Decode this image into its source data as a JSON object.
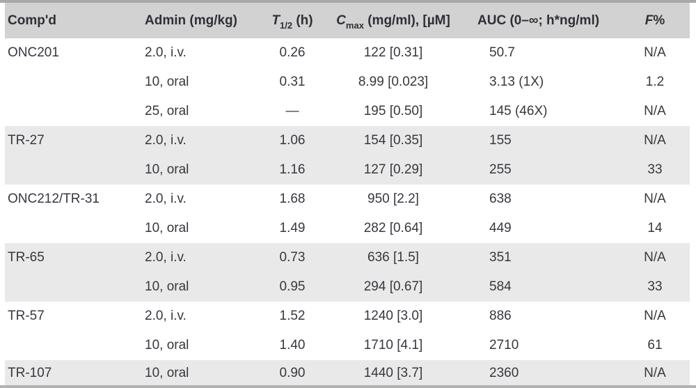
{
  "table": {
    "columns": [
      {
        "id": "compound",
        "label": "Comp'd"
      },
      {
        "id": "admin",
        "label": "Admin (mg/kg)"
      },
      {
        "id": "t_half",
        "label_main": "T",
        "label_sub": "1/2",
        "label_suffix": " (h)"
      },
      {
        "id": "cmax",
        "label_main": "C",
        "label_sub": "max",
        "label_suffix": " (mg/ml), [µM]"
      },
      {
        "id": "auc",
        "label": "AUC (0–∞; h*ng/ml)"
      },
      {
        "id": "f_pct",
        "label_main": "F",
        "label_suffix": "%"
      }
    ],
    "groups": [
      {
        "compound": "ONC201",
        "rows": [
          {
            "admin": "2.0, i.v.",
            "t_half": "0.26",
            "cmax": "122 [0.31]",
            "auc": "50.7",
            "f": "N/A"
          },
          {
            "admin": "10, oral",
            "t_half": "0.31",
            "cmax": "8.99 [0.023]",
            "auc": "3.13 (1X)",
            "f": "1.2"
          },
          {
            "admin": "25, oral",
            "t_half": "—",
            "cmax": "195 [0.50]",
            "auc": "145 (46X)",
            "f": "N/A"
          }
        ]
      },
      {
        "compound": "TR-27",
        "rows": [
          {
            "admin": "2.0, i.v.",
            "t_half": "1.06",
            "cmax": "154 [0.35]",
            "auc": "155",
            "f": "N/A"
          },
          {
            "admin": "10, oral",
            "t_half": "1.16",
            "cmax": "127 [0.29]",
            "auc": "255",
            "f": "33"
          }
        ]
      },
      {
        "compound": "ONC212/TR-31",
        "rows": [
          {
            "admin": "2.0, i.v.",
            "t_half": "1.68",
            "cmax": "950 [2.2]",
            "auc": "638",
            "f": "N/A"
          },
          {
            "admin": "10, oral",
            "t_half": "1.49",
            "cmax": "282 [0.64]",
            "auc": "449",
            "f": "14"
          }
        ]
      },
      {
        "compound": "TR-65",
        "rows": [
          {
            "admin": "2.0, i.v.",
            "t_half": "0.73",
            "cmax": "636 [1.5]",
            "auc": "351",
            "f": "N/A"
          },
          {
            "admin": "10, oral",
            "t_half": "0.95",
            "cmax": "294 [0.67]",
            "auc": "584",
            "f": "33"
          }
        ]
      },
      {
        "compound": "TR-57",
        "rows": [
          {
            "admin": "2.0, i.v.",
            "t_half": "1.52",
            "cmax": "1240 [3.0]",
            "auc": "886",
            "f": "N/A"
          },
          {
            "admin": "10, oral",
            "t_half": "1.40",
            "cmax": "1710 [4.1]",
            "auc": "2710",
            "f": "61"
          }
        ]
      },
      {
        "compound": "TR-107",
        "rows": [
          {
            "admin": "10, oral",
            "t_half": "0.90",
            "cmax": "1440 [3.7]",
            "auc": "2360",
            "f": "N/A"
          }
        ]
      }
    ]
  }
}
